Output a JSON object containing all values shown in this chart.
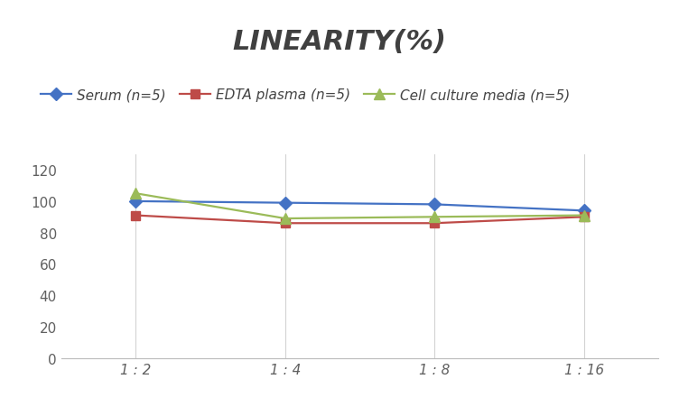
{
  "title": "LINEARITY(%)",
  "x_labels": [
    "1 : 2",
    "1 : 4",
    "1 : 8",
    "1 : 16"
  ],
  "x_positions": [
    1,
    2,
    3,
    4
  ],
  "series": [
    {
      "label": "Serum (n=5)",
      "values": [
        100,
        99,
        98,
        94
      ],
      "color": "#4472C4",
      "marker": "D",
      "markersize": 7
    },
    {
      "label": "EDTA plasma (n=5)",
      "values": [
        91,
        86,
        86,
        90
      ],
      "color": "#BE4B48",
      "marker": "s",
      "markersize": 7
    },
    {
      "label": "Cell culture media (n=5)",
      "values": [
        105,
        89,
        90,
        91
      ],
      "color": "#9BBB59",
      "marker": "^",
      "markersize": 8
    }
  ],
  "ylim": [
    0,
    130
  ],
  "yticks": [
    0,
    20,
    40,
    60,
    80,
    100,
    120
  ],
  "background_color": "#FFFFFF",
  "grid_color": "#D3D3D3",
  "title_fontsize": 22,
  "legend_fontsize": 11,
  "tick_fontsize": 11,
  "title_color": "#404040",
  "tick_color": "#606060"
}
